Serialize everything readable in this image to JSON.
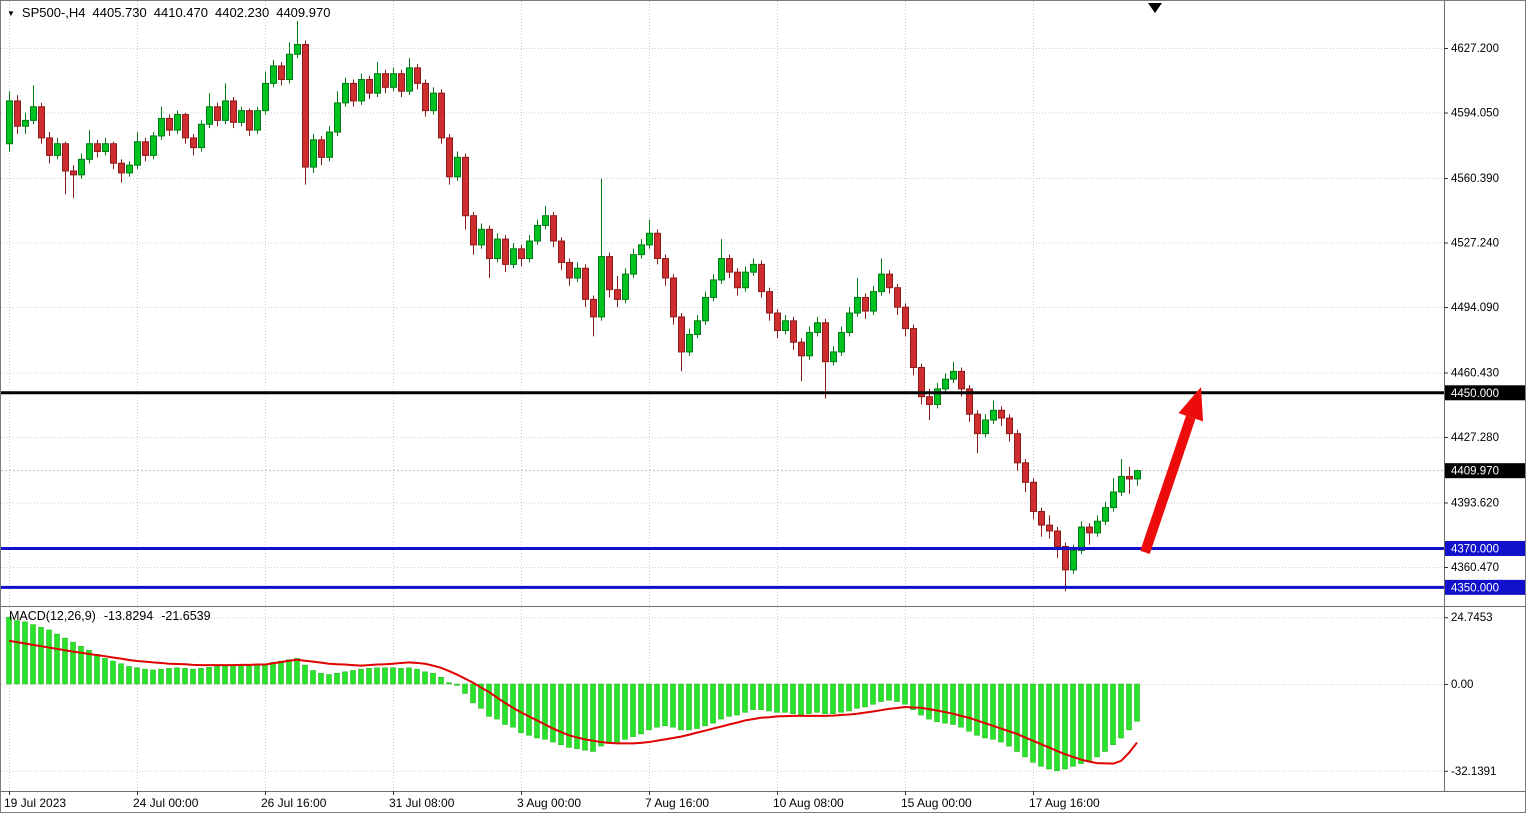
{
  "header": {
    "dropdown_icon": "▼",
    "symbol_timeframe": "SP500-,H4",
    "open": "4405.730",
    "high": "4410.470",
    "low": "4402.230",
    "close": "4409.970"
  },
  "macd_panel": {
    "label": "MACD(12,26,9)",
    "main_value": "-13.8294",
    "signal_value": "-21.6539",
    "axis_labels": [
      {
        "text": "24.7453",
        "value": 24.7453
      },
      {
        "text": "0.00",
        "value": 0
      },
      {
        "text": "-32.1391",
        "value": -32.1391
      }
    ]
  },
  "colors": {
    "background": "#ffffff",
    "candle_up": "#00c321",
    "candle_up_border": "#007a15",
    "candle_down": "#cf2e2e",
    "candle_down_border": "#8c1a1a",
    "macd_bar": "#2be22b",
    "macd_bar_border": "#17b417",
    "macd_signal": "#e00000",
    "level_black": "#000000",
    "level_blue": "#1111cc",
    "arrow_red": "#ed0c0c"
  },
  "chart_data": {
    "type": "candlestick",
    "symbol": "SP500-",
    "timeframe": "H4",
    "indicator": "MACD(12,26,9)",
    "price_axis": {
      "current_price": 4409.97,
      "current_price_label": "4409.970",
      "ticks": [
        {
          "label": "4627.200",
          "value": 4627.2
        },
        {
          "label": "4594.050",
          "value": 4594.05
        },
        {
          "label": "4560.390",
          "value": 4560.39
        },
        {
          "label": "4527.240",
          "value": 4527.24
        },
        {
          "label": "4494.090",
          "value": 4494.09
        },
        {
          "label": "4460.430",
          "value": 4460.43
        },
        {
          "label": "4427.280",
          "value": 4427.28
        },
        {
          "label": "4393.620",
          "value": 4393.62
        },
        {
          "label": "4360.470",
          "value": 4360.47
        }
      ]
    },
    "levels": [
      {
        "label": "4450.000",
        "price": 4450.0,
        "color": "#000000"
      },
      {
        "label": "4370.000",
        "price": 4370.0,
        "color": "#1111cc"
      },
      {
        "label": "4350.000",
        "price": 4350.0,
        "color": "#1111cc"
      }
    ],
    "time_axis": [
      {
        "label": "19 Jul 2023",
        "index": 0
      },
      {
        "label": "24 Jul 00:00",
        "index": 16
      },
      {
        "label": "26 Jul 16:00",
        "index": 32
      },
      {
        "label": "31 Jul 08:00",
        "index": 48
      },
      {
        "label": "3 Aug 00:00",
        "index": 64
      },
      {
        "label": "7 Aug 16:00",
        "index": 80
      },
      {
        "label": "10 Aug 08:00",
        "index": 96
      },
      {
        "label": "15 Aug 00:00",
        "index": 112
      },
      {
        "label": "17 Aug 16:00",
        "index": 128
      }
    ],
    "annotation_arrow": {
      "from": {
        "index": 142,
        "price": 4368
      },
      "to": {
        "index": 149,
        "price": 4453
      },
      "color": "#ed0c0c"
    },
    "candles": [
      [
        4578,
        4605,
        4574,
        4600
      ],
      [
        4600,
        4603,
        4583,
        4587
      ],
      [
        4587,
        4594,
        4583,
        4590
      ],
      [
        4590,
        4608,
        4588,
        4597
      ],
      [
        4597,
        4599,
        4578,
        4581
      ],
      [
        4581,
        4584,
        4568,
        4572
      ],
      [
        4572,
        4581,
        4570,
        4578
      ],
      [
        4578,
        4579,
        4552,
        4564
      ],
      [
        4564,
        4567,
        4550,
        4562
      ],
      [
        4562,
        4573,
        4560,
        4570
      ],
      [
        4570,
        4585,
        4568,
        4578
      ],
      [
        4578,
        4580,
        4571,
        4574
      ],
      [
        4574,
        4581,
        4572,
        4578
      ],
      [
        4578,
        4579,
        4565,
        4568
      ],
      [
        4568,
        4570,
        4558,
        4563
      ],
      [
        4563,
        4569,
        4561,
        4567
      ],
      [
        4567,
        4584,
        4565,
        4579
      ],
      [
        4579,
        4581,
        4569,
        4572
      ],
      [
        4572,
        4584,
        4570,
        4582
      ],
      [
        4582,
        4597,
        4580,
        4591
      ],
      [
        4591,
        4593,
        4582,
        4585
      ],
      [
        4585,
        4595,
        4583,
        4593
      ],
      [
        4593,
        4594,
        4578,
        4581
      ],
      [
        4581,
        4583,
        4572,
        4576
      ],
      [
        4576,
        4590,
        4574,
        4588
      ],
      [
        4588,
        4604,
        4586,
        4597
      ],
      [
        4597,
        4599,
        4587,
        4590
      ],
      [
        4590,
        4609,
        4588,
        4600
      ],
      [
        4600,
        4602,
        4586,
        4589
      ],
      [
        4589,
        4597,
        4587,
        4595
      ],
      [
        4595,
        4596,
        4582,
        4585
      ],
      [
        4585,
        4597,
        4583,
        4595
      ],
      [
        4595,
        4615,
        4593,
        4609
      ],
      [
        4609,
        4621,
        4607,
        4618
      ],
      [
        4618,
        4620,
        4608,
        4611
      ],
      [
        4611,
        4630,
        4609,
        4624
      ],
      [
        4624,
        4641,
        4622,
        4629
      ],
      [
        4629,
        4631,
        4557,
        4566
      ],
      [
        4566,
        4583,
        4563,
        4580
      ],
      [
        4580,
        4582,
        4567,
        4571
      ],
      [
        4571,
        4587,
        4569,
        4584
      ],
      [
        4584,
        4605,
        4582,
        4599
      ],
      [
        4599,
        4612,
        4597,
        4609
      ],
      [
        4609,
        4611,
        4597,
        4600
      ],
      [
        4600,
        4614,
        4598,
        4611
      ],
      [
        4611,
        4613,
        4601,
        4604
      ],
      [
        4604,
        4620,
        4602,
        4614
      ],
      [
        4614,
        4616,
        4604,
        4607
      ],
      [
        4607,
        4617,
        4605,
        4614
      ],
      [
        4614,
        4616,
        4602,
        4605
      ],
      [
        4605,
        4622,
        4603,
        4617
      ],
      [
        4617,
        4619,
        4606,
        4609
      ],
      [
        4609,
        4611,
        4592,
        4595
      ],
      [
        4595,
        4607,
        4593,
        4604
      ],
      [
        4604,
        4606,
        4578,
        4581
      ],
      [
        4581,
        4583,
        4557,
        4561
      ],
      [
        4561,
        4574,
        4559,
        4571
      ],
      [
        4571,
        4573,
        4534,
        4541
      ],
      [
        4541,
        4543,
        4521,
        4526
      ],
      [
        4526,
        4537,
        4524,
        4534
      ],
      [
        4534,
        4536,
        4509,
        4519
      ],
      [
        4519,
        4532,
        4517,
        4529
      ],
      [
        4529,
        4531,
        4512,
        4516
      ],
      [
        4516,
        4527,
        4514,
        4524
      ],
      [
        4524,
        4526,
        4515,
        4519
      ],
      [
        4519,
        4531,
        4517,
        4528
      ],
      [
        4528,
        4539,
        4526,
        4536
      ],
      [
        4536,
        4546,
        4534,
        4541
      ],
      [
        4541,
        4543,
        4525,
        4528
      ],
      [
        4528,
        4530,
        4513,
        4517
      ],
      [
        4517,
        4519,
        4505,
        4509
      ],
      [
        4509,
        4517,
        4507,
        4514
      ],
      [
        4514,
        4516,
        4494,
        4498
      ],
      [
        4498,
        4500,
        4479,
        4489
      ],
      [
        4489,
        4560,
        4487,
        4520
      ],
      [
        4520,
        4522,
        4499,
        4503
      ],
      [
        4503,
        4510,
        4494,
        4498
      ],
      [
        4498,
        4514,
        4496,
        4511
      ],
      [
        4511,
        4524,
        4509,
        4521
      ],
      [
        4521,
        4529,
        4519,
        4526
      ],
      [
        4526,
        4539,
        4524,
        4532
      ],
      [
        4532,
        4534,
        4516,
        4519
      ],
      [
        4519,
        4521,
        4505,
        4509
      ],
      [
        4509,
        4511,
        4485,
        4489
      ],
      [
        4489,
        4491,
        4461,
        4471
      ],
      [
        4471,
        4483,
        4469,
        4480
      ],
      [
        4480,
        4490,
        4478,
        4487
      ],
      [
        4487,
        4502,
        4485,
        4499
      ],
      [
        4499,
        4511,
        4497,
        4508
      ],
      [
        4508,
        4529,
        4506,
        4519
      ],
      [
        4519,
        4521,
        4509,
        4512
      ],
      [
        4512,
        4514,
        4500,
        4504
      ],
      [
        4504,
        4515,
        4502,
        4512
      ],
      [
        4512,
        4519,
        4510,
        4516
      ],
      [
        4516,
        4518,
        4499,
        4502
      ],
      [
        4502,
        4504,
        4487,
        4491
      ],
      [
        4491,
        4493,
        4478,
        4482
      ],
      [
        4482,
        4490,
        4480,
        4487
      ],
      [
        4487,
        4489,
        4472,
        4476
      ],
      [
        4476,
        4478,
        4456,
        4469
      ],
      [
        4469,
        4484,
        4467,
        4481
      ],
      [
        4481,
        4489,
        4479,
        4486
      ],
      [
        4486,
        4488,
        4447,
        4466
      ],
      [
        4466,
        4474,
        4464,
        4471
      ],
      [
        4471,
        4484,
        4469,
        4481
      ],
      [
        4481,
        4494,
        4479,
        4491
      ],
      [
        4491,
        4509,
        4489,
        4499
      ],
      [
        4499,
        4501,
        4488,
        4492
      ],
      [
        4492,
        4505,
        4490,
        4502
      ],
      [
        4502,
        4519,
        4500,
        4511
      ],
      [
        4511,
        4513,
        4501,
        4504
      ],
      [
        4504,
        4506,
        4490,
        4494
      ],
      [
        4494,
        4496,
        4479,
        4483
      ],
      [
        4483,
        4485,
        4459,
        4463
      ],
      [
        4463,
        4465,
        4444,
        4448
      ],
      [
        4448,
        4452,
        4436,
        4444
      ],
      [
        4444,
        4455,
        4442,
        4452
      ],
      [
        4452,
        4460,
        4450,
        4457
      ],
      [
        4457,
        4466,
        4455,
        4461
      ],
      [
        4461,
        4463,
        4448,
        4452
      ],
      [
        4452,
        4454,
        4435,
        4439
      ],
      [
        4439,
        4441,
        4419,
        4429
      ],
      [
        4429,
        4439,
        4427,
        4436
      ],
      [
        4436,
        4446,
        4434,
        4441
      ],
      [
        4441,
        4443,
        4433,
        4437
      ],
      [
        4437,
        4439,
        4425,
        4429
      ],
      [
        4429,
        4431,
        4410,
        4414
      ],
      [
        4414,
        4416,
        4399,
        4404
      ],
      [
        4404,
        4406,
        4385,
        4389
      ],
      [
        4389,
        4391,
        4376,
        4382
      ],
      [
        4382,
        4387,
        4375,
        4379
      ],
      [
        4379,
        4381,
        4365,
        4371
      ],
      [
        4371,
        4373,
        4348,
        4359
      ],
      [
        4359,
        4372,
        4357,
        4369
      ],
      [
        4369,
        4384,
        4367,
        4381
      ],
      [
        4381,
        4383,
        4372,
        4378
      ],
      [
        4378,
        4387,
        4376,
        4384
      ],
      [
        4384,
        4394,
        4382,
        4391
      ],
      [
        4391,
        4406,
        4389,
        4399
      ],
      [
        4399,
        4416,
        4397,
        4407
      ],
      [
        4407,
        4412,
        4398,
        4405.7
      ],
      [
        4405.73,
        4410.47,
        4402.23,
        4409.97
      ]
    ],
    "macd": {
      "histogram": [
        24.75,
        23.5,
        23.0,
        22.0,
        21.0,
        20.0,
        18.5,
        17.0,
        15.5,
        14.0,
        12.5,
        11.0,
        9.5,
        8.5,
        7.5,
        6.5,
        6.0,
        5.5,
        5.2,
        5.5,
        5.8,
        6.0,
        5.8,
        5.5,
        5.8,
        6.2,
        6.5,
        7.0,
        7.2,
        7.0,
        6.8,
        7.0,
        7.5,
        8.0,
        8.5,
        9.0,
        9.5,
        7.0,
        5.0,
        4.0,
        3.5,
        4.0,
        4.5,
        5.0,
        5.5,
        5.8,
        6.0,
        6.0,
        6.0,
        5.8,
        6.0,
        5.5,
        4.5,
        4.0,
        2.5,
        0.5,
        -0.5,
        -3.5,
        -7.0,
        -9.0,
        -12.0,
        -13.0,
        -15.0,
        -16.0,
        -18.0,
        -19.0,
        -20.0,
        -20.5,
        -21.5,
        -22.5,
        -23.5,
        -24.0,
        -24.5,
        -25.0,
        -23.0,
        -22.0,
        -21.5,
        -20.5,
        -19.5,
        -18.5,
        -17.0,
        -16.0,
        -15.5,
        -16.0,
        -17.0,
        -17.0,
        -16.5,
        -15.5,
        -14.5,
        -13.0,
        -12.0,
        -11.5,
        -10.5,
        -9.5,
        -9.5,
        -10.0,
        -10.5,
        -10.5,
        -11.0,
        -11.5,
        -11.0,
        -10.5,
        -11.0,
        -11.0,
        -10.5,
        -10.0,
        -9.0,
        -8.5,
        -7.5,
        -6.5,
        -6.0,
        -6.5,
        -7.5,
        -9.5,
        -11.5,
        -13.0,
        -14.0,
        -14.5,
        -15.0,
        -16.0,
        -17.5,
        -19.0,
        -20.0,
        -20.5,
        -21.5,
        -23.0,
        -25.0,
        -27.0,
        -29.0,
        -30.5,
        -31.5,
        -32.14,
        -31.5,
        -30.5,
        -29.5,
        -28.5,
        -27.0,
        -25.0,
        -22.5,
        -20.0,
        -17.0,
        -13.83
      ],
      "signal": [
        16.0,
        15.5,
        15.0,
        14.5,
        14.0,
        13.5,
        13.0,
        12.5,
        12.0,
        11.6,
        11.1,
        10.7,
        10.3,
        9.8,
        9.4,
        8.9,
        8.5,
        8.3,
        8.0,
        7.8,
        7.5,
        7.4,
        7.3,
        7.1,
        7.0,
        7.0,
        7.0,
        7.0,
        7.0,
        7.1,
        7.1,
        7.2,
        7.2,
        7.7,
        8.1,
        8.6,
        9.0,
        8.6,
        8.3,
        7.9,
        7.5,
        7.3,
        7.2,
        7.0,
        6.8,
        7.0,
        7.2,
        7.3,
        7.5,
        7.8,
        8.0,
        7.8,
        7.5,
        6.8,
        6.0,
        4.8,
        3.5,
        2.0,
        0.5,
        -1.3,
        -3.0,
        -5.0,
        -7.0,
        -8.8,
        -10.5,
        -12.0,
        -13.5,
        -15.0,
        -16.5,
        -17.8,
        -19.0,
        -19.8,
        -20.5,
        -21.0,
        -21.5,
        -21.8,
        -22.0,
        -22.0,
        -22.0,
        -21.8,
        -21.5,
        -21.0,
        -20.5,
        -20.0,
        -19.5,
        -18.8,
        -18.0,
        -17.3,
        -16.5,
        -15.8,
        -15.0,
        -14.3,
        -13.5,
        -13.0,
        -12.5,
        -12.3,
        -12.0,
        -11.9,
        -11.8,
        -11.8,
        -11.8,
        -11.8,
        -11.8,
        -11.7,
        -11.5,
        -11.3,
        -11.0,
        -10.6,
        -10.2,
        -9.7,
        -9.2,
        -8.9,
        -8.5,
        -8.7,
        -8.8,
        -9.3,
        -9.8,
        -10.4,
        -11.0,
        -11.8,
        -12.5,
        -13.5,
        -14.5,
        -15.5,
        -16.5,
        -17.5,
        -18.5,
        -19.8,
        -21.0,
        -22.3,
        -23.5,
        -24.8,
        -26.0,
        -27.0,
        -28.0,
        -28.7,
        -29.3,
        -29.4,
        -29.5,
        -28.5,
        -25.5,
        -21.65
      ]
    }
  }
}
